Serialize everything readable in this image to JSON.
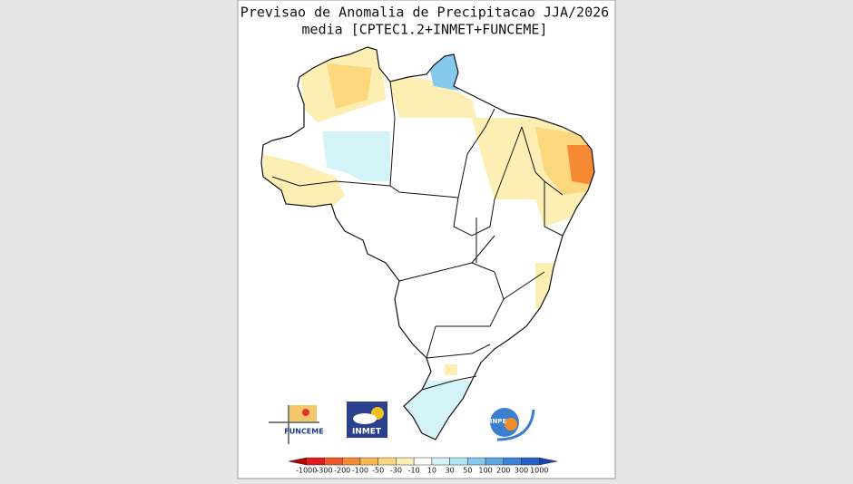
{
  "header": {
    "title": "Previsao de Anomalia de Precipitacao JJA/2026",
    "subtitle": "media [CPTEC1.2+INMET+FUNCEME]"
  },
  "logos": {
    "funceme": "FUNCEME",
    "inmet": "INMET",
    "inpe": "INPE"
  },
  "legend": {
    "ticks": [
      -1000,
      -300,
      -200,
      -100,
      -50,
      -30,
      -10,
      10,
      30,
      50,
      100,
      200,
      300,
      1000
    ],
    "colors": [
      "#b40000",
      "#e31a1c",
      "#f2552a",
      "#f68a34",
      "#f9b54f",
      "#fcd77e",
      "#fdeeb4",
      "#ffffff",
      "#d4f3f8",
      "#aee6f3",
      "#87c8ef",
      "#5ca6e6",
      "#3b82d9",
      "#2362c8",
      "#1345b0"
    ]
  }
}
